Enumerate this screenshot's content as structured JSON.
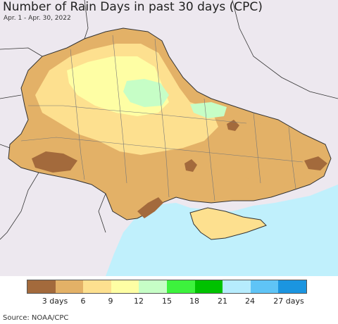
{
  "header": {
    "title": "Number of Rain Days in past 30 days (CPC)",
    "subtitle": "Apr. 1 - Apr. 30, 2022"
  },
  "legend": {
    "colors": [
      "#a36a3c",
      "#e3b167",
      "#fde08f",
      "#fefea4",
      "#c6fec6",
      "#3df23d",
      "#00c200",
      "#b6ecfd",
      "#5fc4f6",
      "#1b95e0"
    ],
    "labels": [
      "3 days",
      "6",
      "9",
      "12",
      "15",
      "18",
      "21",
      "24",
      "27 days"
    ]
  },
  "footer": {
    "source": "Source: NOAA/CPC"
  },
  "colors": {
    "background_land": "#ede8ef",
    "sea": "#c0f0fc",
    "border": "#333333"
  }
}
